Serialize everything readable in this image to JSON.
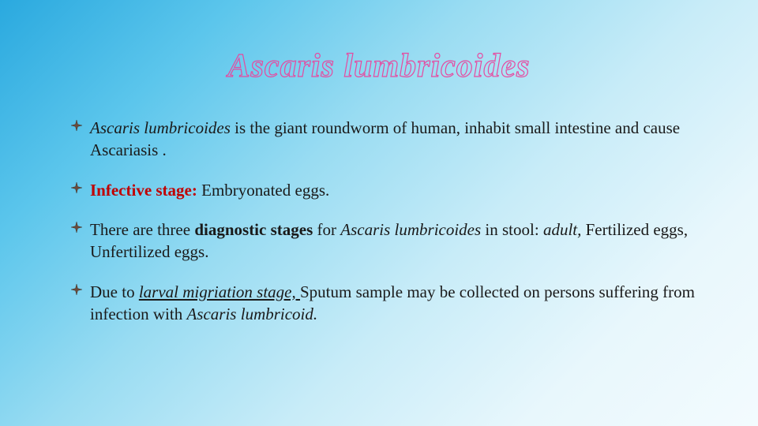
{
  "slide": {
    "background_gradient": [
      "#2aa9df",
      "#5cc6ec",
      "#99dcf2",
      "#c8ecf8",
      "#e8f7fc",
      "#f3fbfe"
    ],
    "title": {
      "text": "Ascaris lumbricoides",
      "fontsize": 42,
      "outline_color": "#e64aa0",
      "italic": true,
      "bold": true
    },
    "bullet_icon": {
      "type": "diamond-4point",
      "fill": "#6b4a3a",
      "stroke": "#3a2a1f",
      "size": 14
    },
    "body_fontsize": 21,
    "body_color": "#1a1a1a",
    "bullets": [
      {
        "runs": [
          {
            "text": "Ascaris lumbricoides",
            "italic": true
          },
          {
            "text": " is the giant roundworm of human, inhabit small intestine and cause Ascariasis ."
          }
        ]
      },
      {
        "runs": [
          {
            "text": " Infective stage:",
            "color": "#c00000",
            "bold": true
          },
          {
            "text": " Embryonated eggs."
          }
        ]
      },
      {
        "runs": [
          {
            "text": " There are three "
          },
          {
            "text": "diagnostic stages ",
            "bold": true
          },
          {
            "text": " for "
          },
          {
            "text": "Ascaris lumbricoides ",
            "italic": true
          },
          {
            "text": " in stool: "
          },
          {
            "text": "adult,",
            "italic": true
          },
          {
            "text": " Fertilized eggs, Unfertilized eggs."
          }
        ]
      },
      {
        "runs": [
          {
            "text": " Due to "
          },
          {
            "text": "larval migriation stage,  ",
            "italic": true,
            "underline": true
          },
          {
            "text": "Sputum sample may be collected on persons suffering from infection with "
          },
          {
            "text": "Ascaris lumbricoid.",
            "italic": true
          }
        ]
      }
    ]
  }
}
